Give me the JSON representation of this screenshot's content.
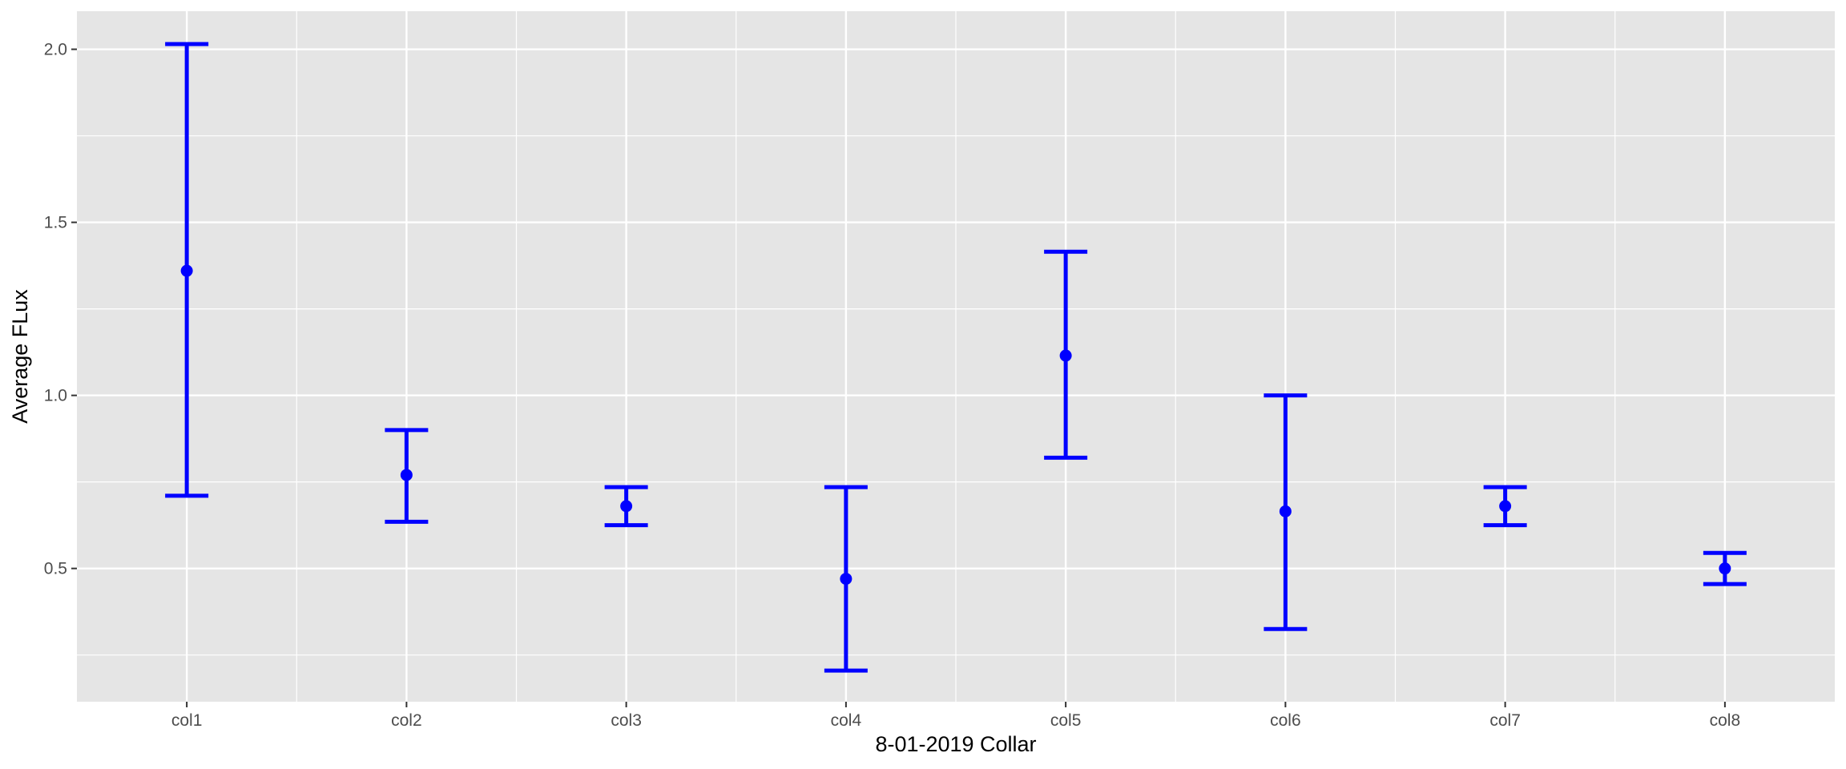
{
  "chart_data": {
    "type": "errorbar",
    "title": "",
    "xlabel": "8-01-2019 Collar",
    "ylabel": "Average FLux",
    "categories": [
      "col1",
      "col2",
      "col3",
      "col4",
      "col5",
      "col6",
      "col7",
      "col8"
    ],
    "series": [
      {
        "values": [
          1.36,
          0.77,
          0.68,
          0.47,
          1.115,
          0.665,
          0.68,
          0.5
        ],
        "lower": [
          0.71,
          0.635,
          0.625,
          0.205,
          0.82,
          0.325,
          0.625,
          0.455
        ],
        "upper": [
          2.015,
          0.9,
          0.735,
          0.735,
          1.415,
          1.0,
          0.735,
          0.545
        ]
      }
    ],
    "yticks": [
      0.5,
      1.0,
      1.5,
      2.0
    ],
    "ytick_labels": [
      "0.5",
      "1.0",
      "1.5",
      "2.0"
    ],
    "ylim": [
      0.115,
      2.11
    ],
    "grid": true,
    "colors": {
      "series": "#0000ff",
      "panel": "#e5e5e5",
      "grid": "#ffffff"
    }
  }
}
